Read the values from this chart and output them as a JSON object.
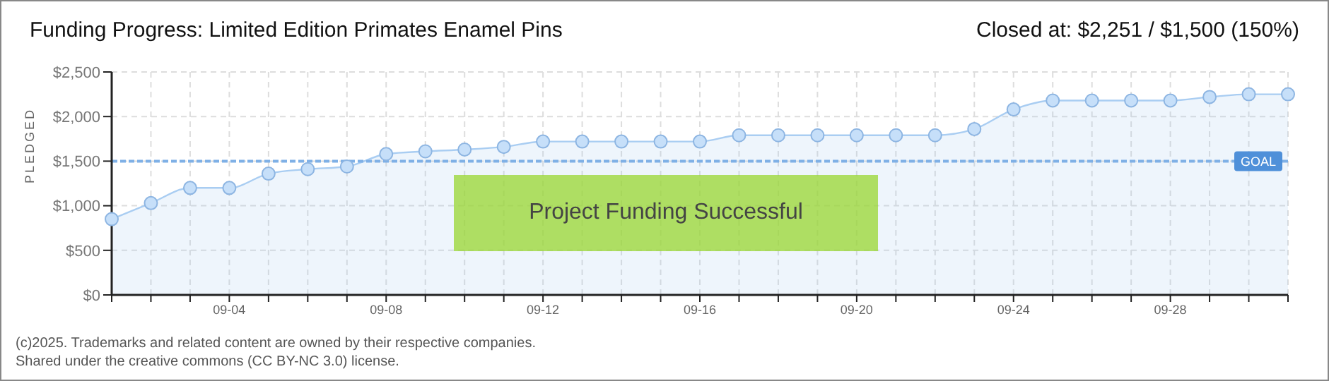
{
  "chart_data": {
    "type": "area",
    "title": "Funding Progress: Limited Edition Primates Enamel Pins",
    "subtitle": "Closed at:  $2,251 /  $1,500 (150%)",
    "ylabel": "PLEDGED",
    "categories": [
      null,
      null,
      null,
      "09-04",
      null,
      null,
      null,
      "09-08",
      null,
      null,
      null,
      "09-12",
      null,
      null,
      null,
      "09-16",
      null,
      null,
      null,
      "09-20",
      null,
      null,
      null,
      "09-24",
      null,
      null,
      null,
      "09-28",
      null,
      null,
      null
    ],
    "values": [
      850,
      1030,
      1200,
      1200,
      1360,
      1410,
      1440,
      1580,
      1610,
      1630,
      1660,
      1720,
      1720,
      1720,
      1720,
      1720,
      1790,
      1790,
      1790,
      1790,
      1790,
      1790,
      1860,
      2080,
      2180,
      2180,
      2180,
      2180,
      2220,
      2250,
      2250
    ],
    "color": "#a9cdf2",
    "marker": "circle",
    "grid": true,
    "ylim": [
      0,
      2500
    ],
    "yticks": [
      {
        "value": 0,
        "label": "$0"
      },
      {
        "value": 500,
        "label": "$500"
      },
      {
        "value": 1000,
        "label": "$1,000"
      },
      {
        "value": 1500,
        "label": "$1,500"
      },
      {
        "value": 2000,
        "label": "$2,000"
      },
      {
        "value": 2500,
        "label": "$2,500"
      }
    ],
    "ref_lines": [
      {
        "axis": "y",
        "value": 1500,
        "label": "GOAL",
        "color": "#7fb0e6",
        "line_style": "dashed"
      }
    ],
    "annotations": [
      "Project Funding Successful",
      "(c)2025. Trademarks and related content are owned by their respective companies.",
      "Shared under the creative commons (CC BY-NC 3.0) license."
    ]
  }
}
